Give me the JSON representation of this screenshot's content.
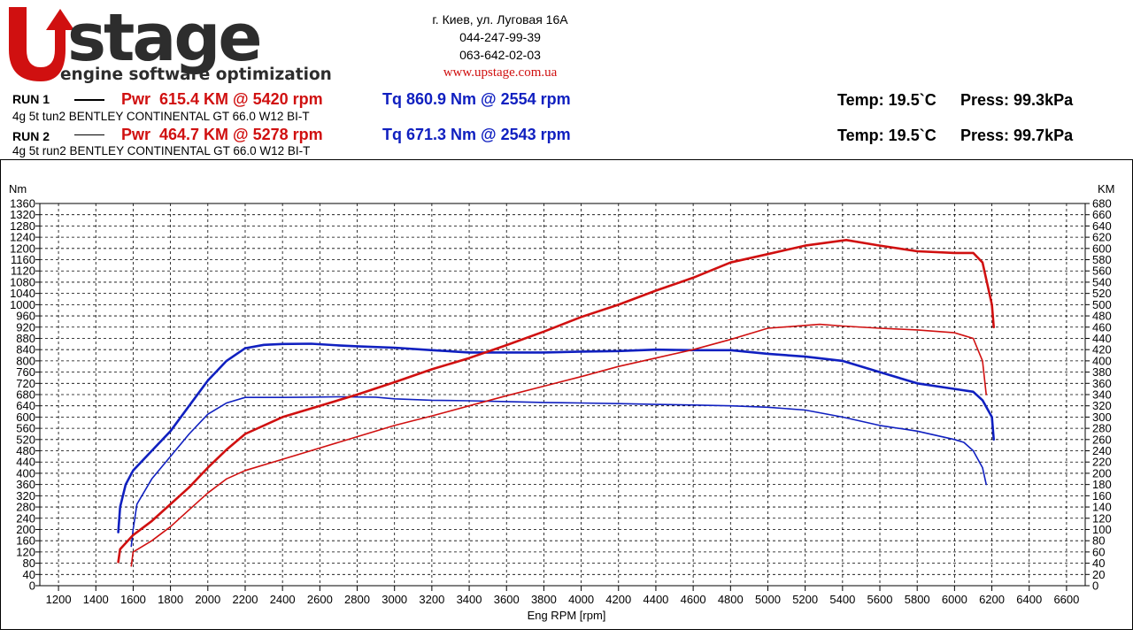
{
  "header": {
    "logo_text": "stage",
    "logo_subtitle": "engine software optimization",
    "address": "г. Киев, ул. Луговая 16А",
    "phone1": "044-247-99-39",
    "phone2": "063-642-02-03",
    "website": "www.upstage.com.ua"
  },
  "runs": [
    {
      "label": "RUN 1",
      "pwr": "Pwr  615.4 KM @ 5420 rpm",
      "tq": "Tq 860.9 Nm @ 2554 rpm",
      "car": "4g 5t tun2 BENTLEY CONTINENTAL GT 66.0 W12 BI-T",
      "temp": "Temp: 19.5`C",
      "press": "Press: 99.3kPa"
    },
    {
      "label": "RUN 2",
      "pwr": "Pwr  464.7 KM @ 5278 rpm",
      "tq": "Tq 671.3 Nm @ 2543 rpm",
      "car": "4g 5t run2 BENTLEY CONTINENTAL GT 66.0 W12 BI-T",
      "temp": "Temp: 19.5`C",
      "press": "Press: 99.7kPa"
    }
  ],
  "colors": {
    "power": "#d01010",
    "torque": "#1020c0",
    "logo_red": "#d01010"
  },
  "chart_data": {
    "type": "line",
    "xlabel": "Eng RPM [rpm]",
    "ylabel": "Nm",
    "y2label": "KM",
    "xlim": [
      1100,
      6700
    ],
    "ylim": [
      0,
      1360
    ],
    "y2lim": [
      0,
      680
    ],
    "x_ticks": [
      1200,
      1400,
      1600,
      1800,
      2000,
      2200,
      2400,
      2600,
      2800,
      3000,
      3200,
      3400,
      3600,
      3800,
      4000,
      4200,
      4400,
      4600,
      4800,
      5000,
      5200,
      5400,
      5600,
      5800,
      6000,
      6200,
      6400,
      6600
    ],
    "y_ticks": [
      0,
      40,
      80,
      120,
      160,
      200,
      240,
      280,
      320,
      360,
      400,
      440,
      480,
      520,
      560,
      600,
      640,
      680,
      720,
      760,
      800,
      840,
      880,
      920,
      960,
      1000,
      1040,
      1080,
      1120,
      1160,
      1200,
      1240,
      1280,
      1320,
      1360
    ],
    "y2_ticks": [
      0,
      20,
      40,
      60,
      80,
      100,
      120,
      140,
      160,
      180,
      200,
      220,
      240,
      260,
      280,
      300,
      320,
      340,
      360,
      380,
      400,
      420,
      440,
      460,
      480,
      500,
      520,
      540,
      560,
      580,
      600,
      620,
      640,
      660,
      680
    ],
    "grid": true,
    "series": [
      {
        "name": "Tq RUN 1",
        "axis": "left",
        "color": "#1020c0",
        "width": 2.6,
        "x": [
          1520,
          1530,
          1560,
          1600,
          1700,
          1800,
          1900,
          2000,
          2100,
          2200,
          2300,
          2400,
          2554,
          2700,
          2800,
          3000,
          3200,
          3400,
          3600,
          3800,
          4000,
          4200,
          4400,
          4600,
          4800,
          5000,
          5200,
          5400,
          5600,
          5800,
          6000,
          6100,
          6150,
          6200,
          6210
        ],
        "y": [
          190,
          280,
          360,
          410,
          480,
          550,
          640,
          730,
          800,
          845,
          857,
          860,
          861,
          855,
          852,
          847,
          838,
          830,
          830,
          830,
          833,
          835,
          840,
          838,
          838,
          825,
          815,
          800,
          760,
          720,
          700,
          690,
          660,
          600,
          520
        ]
      },
      {
        "name": "Tq RUN 2",
        "axis": "left",
        "color": "#1020c0",
        "width": 1.6,
        "x": [
          1590,
          1600,
          1620,
          1700,
          1800,
          1900,
          2000,
          2100,
          2200,
          2300,
          2400,
          2543,
          2700,
          2900,
          3000,
          3200,
          3400,
          3600,
          3800,
          4000,
          4200,
          4400,
          4600,
          4800,
          5000,
          5200,
          5400,
          5600,
          5800,
          6000,
          6050,
          6100,
          6150,
          6170
        ],
        "y": [
          140,
          200,
          290,
          380,
          460,
          540,
          610,
          650,
          670,
          670,
          670,
          671,
          672,
          671,
          665,
          660,
          658,
          655,
          652,
          650,
          648,
          645,
          643,
          640,
          635,
          625,
          600,
          570,
          550,
          520,
          510,
          480,
          420,
          360
        ]
      },
      {
        "name": "Pwr RUN 1",
        "axis": "right",
        "color": "#d01010",
        "width": 2.6,
        "x": [
          1520,
          1530,
          1600,
          1700,
          1800,
          1900,
          2000,
          2100,
          2200,
          2400,
          2600,
          2800,
          3000,
          3200,
          3400,
          3600,
          3800,
          4000,
          4200,
          4400,
          4600,
          4800,
          5000,
          5200,
          5420,
          5600,
          5800,
          6000,
          6100,
          6150,
          6200,
          6210
        ],
        "y": [
          42,
          65,
          90,
          115,
          145,
          175,
          210,
          242,
          270,
          300,
          320,
          340,
          362,
          385,
          405,
          428,
          452,
          478,
          500,
          525,
          548,
          575,
          590,
          605,
          615,
          605,
          595,
          592,
          592,
          575,
          500,
          460
        ]
      },
      {
        "name": "Pwr RUN 2",
        "axis": "right",
        "color": "#d01010",
        "width": 1.6,
        "x": [
          1590,
          1600,
          1700,
          1800,
          1900,
          2000,
          2100,
          2200,
          2400,
          2600,
          2800,
          3000,
          3200,
          3400,
          3600,
          3800,
          4000,
          4200,
          4400,
          4600,
          4800,
          5000,
          5278,
          5400,
          5600,
          5800,
          6000,
          6050,
          6100,
          6150,
          6170
        ],
        "y": [
          35,
          60,
          80,
          105,
          135,
          165,
          190,
          205,
          225,
          245,
          265,
          285,
          302,
          320,
          338,
          355,
          372,
          390,
          405,
          420,
          438,
          458,
          465,
          462,
          458,
          455,
          450,
          445,
          440,
          400,
          340
        ]
      }
    ]
  }
}
